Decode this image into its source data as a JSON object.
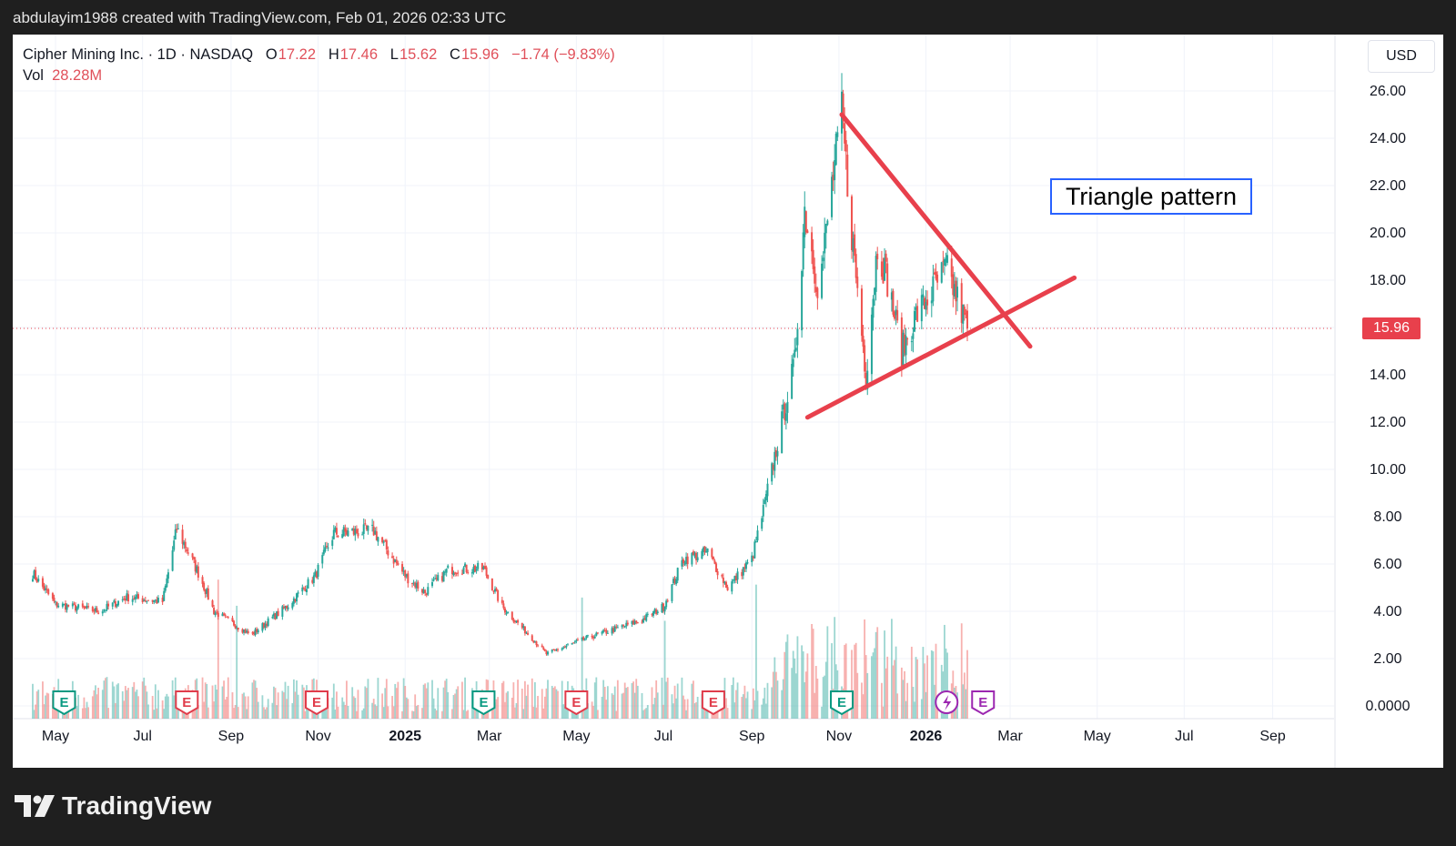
{
  "header": {
    "attribution": "abdulayim1988 created with TradingView.com, Feb 01, 2026 02:33 UTC"
  },
  "legend": {
    "symbol": "Cipher Mining Inc.",
    "interval": "1D",
    "exchange": "NASDAQ",
    "open_label": "O",
    "open": "17.22",
    "high_label": "H",
    "high": "17.46",
    "low_label": "L",
    "low": "15.62",
    "close_label": "C",
    "close": "15.96",
    "change": "−1.74 (−9.83%)",
    "vol_label": "Vol",
    "vol": "28.28M"
  },
  "currency": "USD",
  "last_price": "15.96",
  "annotation": "Triangle pattern",
  "brand": "TradingView",
  "colors": {
    "up": "#26a69a",
    "down": "#ef5350",
    "trend": "#e8404c",
    "annotation_border": "#2962ff",
    "earnings_green": "#089981",
    "earnings_red": "#e03c4b",
    "event_purple": "#9c27b0"
  },
  "chart_data": {
    "type": "candlestick",
    "x_axis": {
      "tick_labels": [
        "May",
        "Jul",
        "Sep",
        "Nov",
        "2025",
        "Mar",
        "May",
        "Jul",
        "Sep",
        "Nov",
        "2026",
        "Mar",
        "May",
        "Jul",
        "Sep"
      ],
      "range": [
        "2024-04",
        "2026-10"
      ]
    },
    "y_axis": {
      "tick_labels": [
        "26.00",
        "24.00",
        "22.00",
        "20.00",
        "18.00",
        "16.00",
        "14.00",
        "12.00",
        "10.00",
        "8.00",
        "6.00",
        "4.00",
        "2.00",
        "0.0000"
      ],
      "range": [
        0,
        26
      ]
    },
    "price_series": {
      "name": "Cipher Mining Inc.",
      "approx_close_path": [
        {
          "x": "2024-04-15",
          "y": 5.6
        },
        {
          "x": "2024-05-01",
          "y": 4.3
        },
        {
          "x": "2024-06-01",
          "y": 4.0
        },
        {
          "x": "2024-06-20",
          "y": 4.6
        },
        {
          "x": "2024-07-15",
          "y": 4.4
        },
        {
          "x": "2024-07-25",
          "y": 7.5
        },
        {
          "x": "2024-08-10",
          "y": 5.5
        },
        {
          "x": "2024-08-20",
          "y": 4.0
        },
        {
          "x": "2024-09-15",
          "y": 3.0
        },
        {
          "x": "2024-10-10",
          "y": 4.2
        },
        {
          "x": "2024-10-30",
          "y": 5.5
        },
        {
          "x": "2024-11-12",
          "y": 7.3
        },
        {
          "x": "2024-12-10",
          "y": 7.4
        },
        {
          "x": "2025-01-01",
          "y": 5.5
        },
        {
          "x": "2025-01-15",
          "y": 4.8
        },
        {
          "x": "2025-02-01",
          "y": 5.8
        },
        {
          "x": "2025-02-25",
          "y": 5.8
        },
        {
          "x": "2025-03-10",
          "y": 4.2
        },
        {
          "x": "2025-04-01",
          "y": 2.8
        },
        {
          "x": "2025-04-10",
          "y": 2.2
        },
        {
          "x": "2025-05-10",
          "y": 2.9
        },
        {
          "x": "2025-06-15",
          "y": 3.6
        },
        {
          "x": "2025-07-01",
          "y": 4.2
        },
        {
          "x": "2025-07-15",
          "y": 6.2
        },
        {
          "x": "2025-08-01",
          "y": 6.5
        },
        {
          "x": "2025-08-15",
          "y": 5.0
        },
        {
          "x": "2025-09-01",
          "y": 6.2
        },
        {
          "x": "2025-09-10",
          "y": 8.5
        },
        {
          "x": "2025-09-22",
          "y": 12.0
        },
        {
          "x": "2025-10-01",
          "y": 14.5
        },
        {
          "x": "2025-10-08",
          "y": 21.0
        },
        {
          "x": "2025-10-18",
          "y": 17.5
        },
        {
          "x": "2025-10-27",
          "y": 22.0
        },
        {
          "x": "2025-11-03",
          "y": 25.0
        },
        {
          "x": "2025-11-10",
          "y": 20.0
        },
        {
          "x": "2025-11-20",
          "y": 14.0
        },
        {
          "x": "2025-11-28",
          "y": 19.5
        },
        {
          "x": "2025-12-05",
          "y": 18.0
        },
        {
          "x": "2025-12-15",
          "y": 15.0
        },
        {
          "x": "2025-12-25",
          "y": 16.5
        },
        {
          "x": "2026-01-05",
          "y": 17.5
        },
        {
          "x": "2026-01-15",
          "y": 18.5
        },
        {
          "x": "2026-01-23",
          "y": 17.2
        },
        {
          "x": "2026-01-30",
          "y": 15.96
        }
      ]
    },
    "last_price_line": 15.96,
    "earnings_markers": [
      {
        "x": "2024-05-07",
        "kind": "green"
      },
      {
        "x": "2024-08-01",
        "kind": "red"
      },
      {
        "x": "2024-10-31",
        "kind": "red"
      },
      {
        "x": "2025-02-25",
        "kind": "green"
      },
      {
        "x": "2025-05-01",
        "kind": "red"
      },
      {
        "x": "2025-08-05",
        "kind": "red"
      },
      {
        "x": "2025-11-03",
        "kind": "green"
      },
      {
        "x": "2026-02-10",
        "kind": "purple"
      }
    ],
    "trendlines": [
      {
        "label": "upper",
        "from": {
          "x": "2025-11-03",
          "y": 25.0
        },
        "to": {
          "x": "2026-03-15",
          "y": 15.2
        }
      },
      {
        "label": "lower",
        "from": {
          "x": "2025-10-10",
          "y": 12.2
        },
        "to": {
          "x": "2026-04-15",
          "y": 18.1
        }
      }
    ],
    "grid": true
  }
}
